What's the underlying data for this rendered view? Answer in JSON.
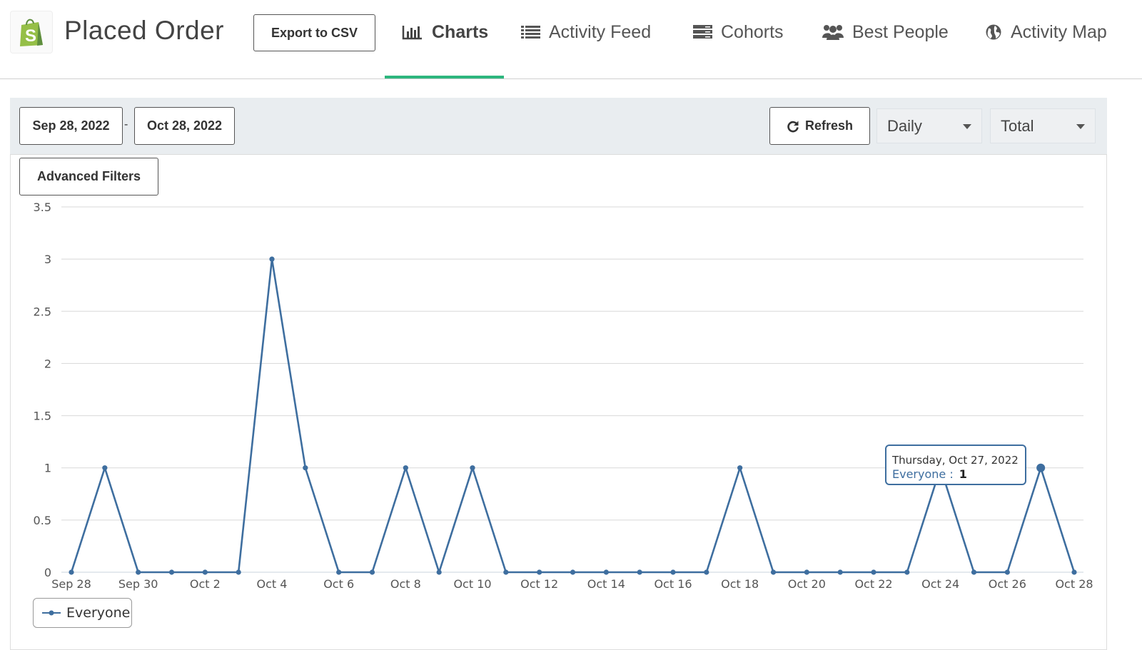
{
  "header": {
    "title": "Placed Order",
    "export_label": "Export to CSV",
    "tabs": [
      {
        "label": "Charts",
        "icon": "bar-chart-icon",
        "active": true
      },
      {
        "label": "Activity Feed",
        "icon": "list-icon"
      },
      {
        "label": "Cohorts",
        "icon": "server-stack-icon"
      },
      {
        "label": "Best People",
        "icon": "users-icon"
      },
      {
        "label": "Activity Map",
        "icon": "globe-icon"
      }
    ],
    "accent_color": "#2cb67d",
    "logo_color": "#95bf47"
  },
  "toolbar": {
    "date_start": "Sep 28, 2022",
    "date_separator": "-",
    "date_end": "Oct 28, 2022",
    "refresh_label": "Refresh",
    "interval_value": "Daily",
    "metric_value": "Total",
    "advanced_filters_label": "Advanced Filters"
  },
  "tooltip": {
    "date": "Thursday, Oct 27, 2022",
    "series": "Everyone",
    "separator": ":",
    "value": "1"
  },
  "chart_data": {
    "type": "line",
    "x": [
      "Sep 28",
      "Sep 29",
      "Sep 30",
      "Oct 1",
      "Oct 2",
      "Oct 3",
      "Oct 4",
      "Oct 5",
      "Oct 6",
      "Oct 7",
      "Oct 8",
      "Oct 9",
      "Oct 10",
      "Oct 11",
      "Oct 12",
      "Oct 13",
      "Oct 14",
      "Oct 15",
      "Oct 16",
      "Oct 17",
      "Oct 18",
      "Oct 19",
      "Oct 20",
      "Oct 21",
      "Oct 22",
      "Oct 23",
      "Oct 24",
      "Oct 25",
      "Oct 26",
      "Oct 27",
      "Oct 28"
    ],
    "x_tick_labels": [
      "Sep 28",
      "Sep 30",
      "Oct 2",
      "Oct 4",
      "Oct 6",
      "Oct 8",
      "Oct 10",
      "Oct 12",
      "Oct 14",
      "Oct 16",
      "Oct 18",
      "Oct 20",
      "Oct 22",
      "Oct 24",
      "Oct 26",
      "Oct 28"
    ],
    "y_ticks": [
      "0",
      "0.5",
      "1",
      "1.5",
      "2",
      "2.5",
      "3",
      "3.5"
    ],
    "ylim": [
      0,
      3.5
    ],
    "series": [
      {
        "name": "Everyone",
        "color": "#3e6e9f",
        "values": [
          0,
          1,
          0,
          0,
          0,
          0,
          3,
          1,
          0,
          0,
          1,
          0,
          1,
          0,
          0,
          0,
          0,
          0,
          0,
          0,
          1,
          0,
          0,
          0,
          0,
          0,
          1,
          0,
          0,
          1,
          0
        ]
      }
    ],
    "highlight_index": 29,
    "grid": true,
    "legend_position": "bottom-left",
    "title": "",
    "xlabel": "",
    "ylabel": ""
  }
}
